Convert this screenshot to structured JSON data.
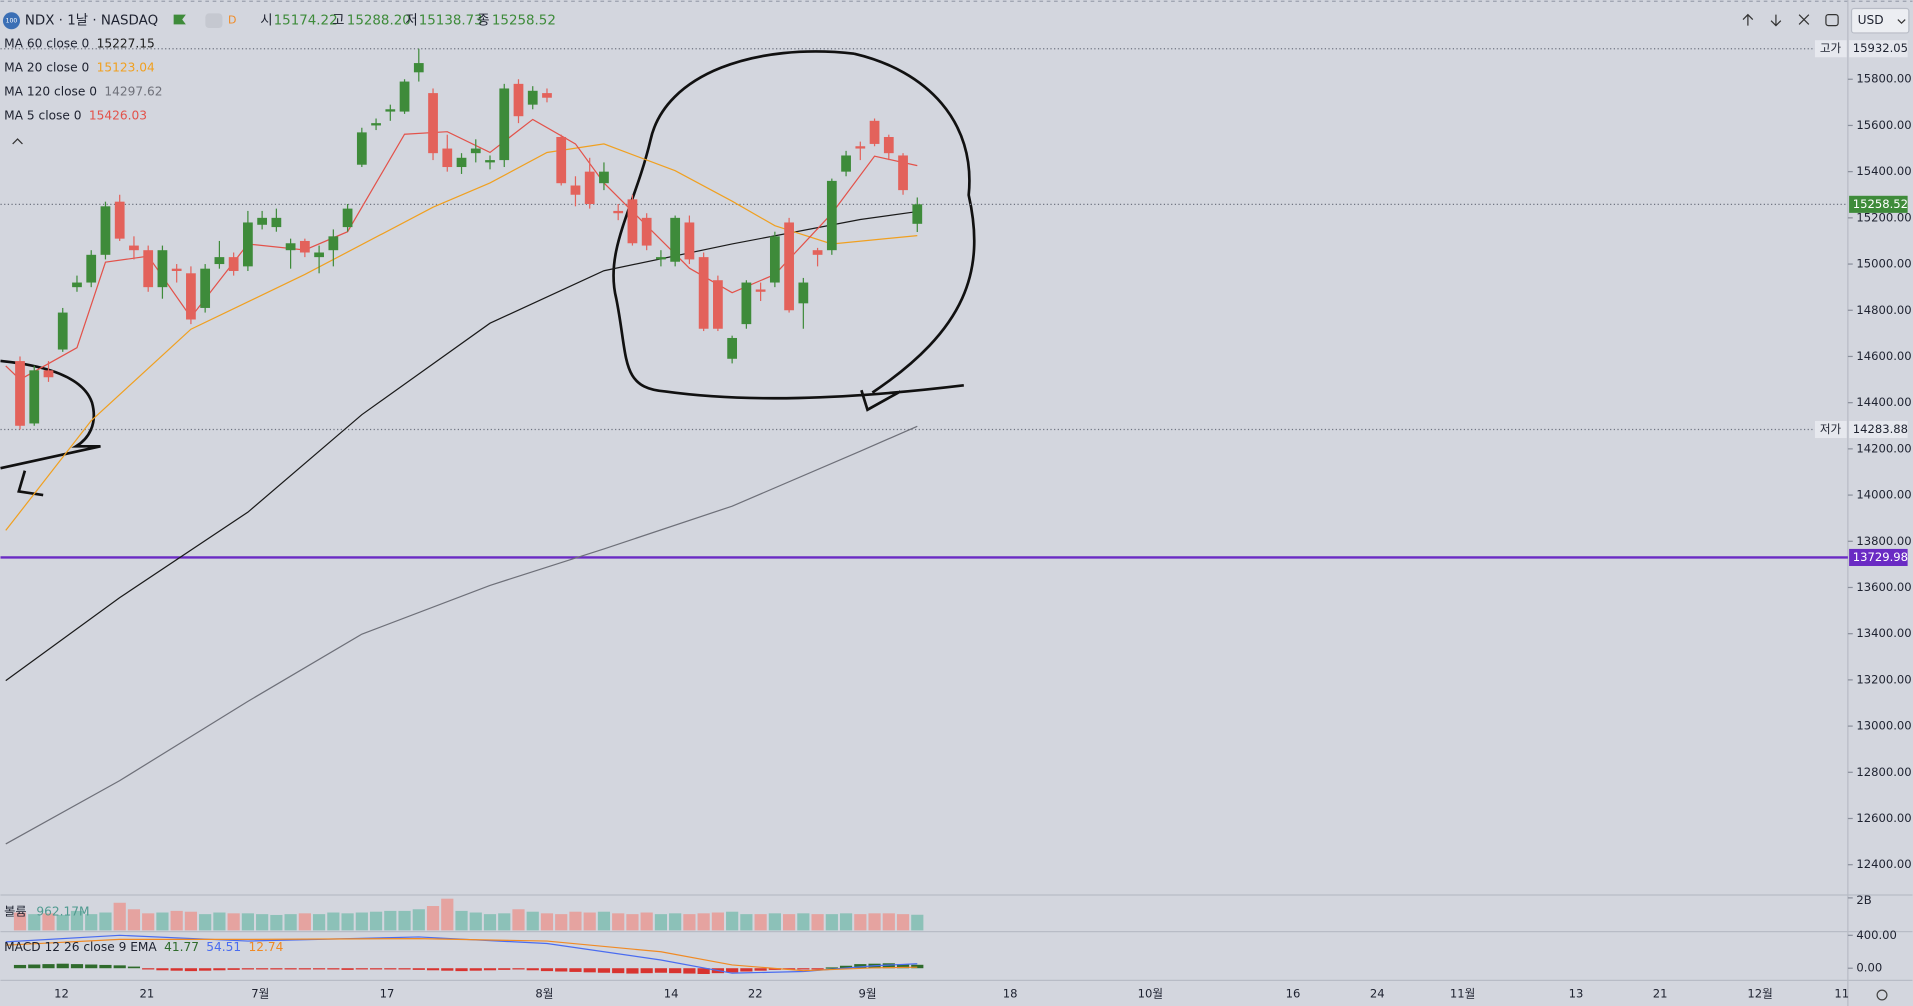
{
  "header": {
    "icon": "100",
    "symbol": "NDX · 1날 · NASDAQ",
    "interval_badge": "D",
    "open_label": "시",
    "open": "15174.22",
    "high_label": "고",
    "high": "15288.20",
    "low_label": "저",
    "low": "15138.73",
    "close_label": "종",
    "close": "15258.52",
    "currency": "USD"
  },
  "chart_data": {
    "type": "candlestick",
    "up_color": "#3e8b3a",
    "down_color": "#e3625b",
    "ohlc": [
      [
        14580,
        14600,
        14283.88,
        14300
      ],
      [
        14310,
        14560,
        14300,
        14540
      ],
      [
        14540,
        14580,
        14490,
        14510
      ],
      [
        14630,
        14810,
        14620,
        14790
      ],
      [
        14900,
        14950,
        14880,
        14920
      ],
      [
        14920,
        15060,
        14900,
        15040
      ],
      [
        15040,
        15270,
        15020,
        15250
      ],
      [
        15270,
        15300,
        15100,
        15110
      ],
      [
        15080,
        15120,
        15020,
        15060
      ],
      [
        15060,
        15080,
        14880,
        14900
      ],
      [
        14900,
        15080,
        14850,
        15060
      ],
      [
        14980,
        15000,
        14920,
        14970
      ],
      [
        14960,
        14990,
        14740,
        14760
      ],
      [
        14810,
        15000,
        14790,
        14980
      ],
      [
        15000,
        15100,
        14980,
        15030
      ],
      [
        15030,
        15050,
        14950,
        14970
      ],
      [
        14990,
        15230,
        14970,
        15180
      ],
      [
        15170,
        15230,
        15150,
        15200
      ],
      [
        15160,
        15240,
        15140,
        15200
      ],
      [
        15060,
        15110,
        14980,
        15090
      ],
      [
        15100,
        15110,
        15030,
        15050
      ],
      [
        15030,
        15080,
        14960,
        15050
      ],
      [
        15060,
        15150,
        14990,
        15120
      ],
      [
        15160,
        15260,
        15140,
        15240
      ],
      [
        15430,
        15590,
        15420,
        15570
      ],
      [
        15600,
        15630,
        15580,
        15610
      ],
      [
        15660,
        15690,
        15620,
        15670
      ],
      [
        15660,
        15800,
        15650,
        15790
      ],
      [
        15830,
        15932.05,
        15790,
        15870
      ],
      [
        15740,
        15760,
        15450,
        15480
      ],
      [
        15500,
        15560,
        15400,
        15420
      ],
      [
        15420,
        15480,
        15390,
        15460
      ],
      [
        15480,
        15540,
        15440,
        15500
      ],
      [
        15440,
        15470,
        15410,
        15450
      ],
      [
        15450,
        15780,
        15420,
        15760
      ],
      [
        15780,
        15800,
        15610,
        15640
      ],
      [
        15690,
        15770,
        15670,
        15750
      ],
      [
        15740,
        15760,
        15700,
        15720
      ],
      [
        15550,
        15560,
        15340,
        15350
      ],
      [
        15340,
        15380,
        15250,
        15300
      ],
      [
        15400,
        15460,
        15240,
        15260
      ],
      [
        15350,
        15440,
        15320,
        15400
      ],
      [
        15230,
        15260,
        15190,
        15220
      ],
      [
        15280,
        15300,
        15080,
        15090
      ],
      [
        15200,
        15220,
        15060,
        15080
      ],
      [
        15020,
        15060,
        14990,
        15030
      ],
      [
        15010,
        15210,
        14990,
        15200
      ],
      [
        15180,
        15210,
        15000,
        15020
      ],
      [
        15030,
        15050,
        14710,
        14720
      ],
      [
        14930,
        14950,
        14710,
        14720
      ],
      [
        14590,
        14690,
        14570,
        14680
      ],
      [
        14740,
        14930,
        14720,
        14920
      ],
      [
        14890,
        14920,
        14840,
        14880
      ],
      [
        14920,
        15140,
        14900,
        15120
      ],
      [
        15180,
        15200,
        14790,
        14800
      ],
      [
        14830,
        14940,
        14720,
        14920
      ],
      [
        15060,
        15070,
        14990,
        15040
      ],
      [
        15060,
        15370,
        15040,
        15360
      ],
      [
        15400,
        15490,
        15380,
        15470
      ],
      [
        15510,
        15530,
        15450,
        15500
      ],
      [
        15620,
        15630,
        15510,
        15520
      ],
      [
        15550,
        15560,
        15450,
        15480
      ],
      [
        15470,
        15480,
        15300,
        15320
      ],
      [
        15174.22,
        15288.2,
        15138.73,
        15258.52
      ]
    ],
    "ylim": [
      12274,
      16143
    ],
    "yticks": [
      {
        "value": 12400,
        "label": "12400.00"
      },
      {
        "value": 12600,
        "label": "12600.00"
      },
      {
        "value": 12800,
        "label": "12800.00"
      },
      {
        "value": 13000,
        "label": "13000.00"
      },
      {
        "value": 13200,
        "label": "13200.00"
      },
      {
        "value": 13400,
        "label": "13400.00"
      },
      {
        "value": 13600,
        "label": "13600.00"
      },
      {
        "value": 13800,
        "label": "13800.00"
      },
      {
        "value": 14000,
        "label": "14000.00"
      },
      {
        "value": 14200,
        "label": "14200.00"
      },
      {
        "value": 14400,
        "label": "14400.00"
      },
      {
        "value": 14600,
        "label": "14600.00"
      },
      {
        "value": 14800,
        "label": "14800.00"
      },
      {
        "value": 15000,
        "label": "15000.00"
      },
      {
        "value": 15200,
        "label": "15200.00"
      },
      {
        "value": 15400,
        "label": "15400.00"
      },
      {
        "value": 15600,
        "label": "15600.00"
      },
      {
        "value": 15800,
        "label": "15800.00"
      }
    ],
    "x_labels": [
      "12",
      "21",
      "7월",
      "17",
      "8월",
      "14",
      "22",
      "9월",
      "18",
      "10월",
      "16",
      "24",
      "11월",
      "13",
      "21",
      "12월",
      "11"
    ],
    "high_tag": "고가",
    "low_tag": "저가",
    "hline": {
      "value": 13729.98,
      "color": "#6a2bc4"
    },
    "moving_averages": [
      {
        "name": "MA 60 close 0",
        "color": "#1a1a1a",
        "x": [
          -1,
          7,
          16,
          24,
          33,
          41,
          50,
          59,
          63
        ],
        "values": [
          13197,
          13556,
          13926,
          14348,
          14744,
          14971,
          15087,
          15193,
          15227.15
        ]
      },
      {
        "name": "MA 20 close 0",
        "color": "#f0a020",
        "x": [
          -1,
          5,
          12,
          20,
          29,
          33,
          37,
          41,
          46,
          50,
          53,
          57,
          63
        ],
        "values": [
          13847,
          14322,
          14718,
          14955,
          15246,
          15351,
          15483,
          15520,
          15404,
          15272,
          15166,
          15087,
          15123.04
        ]
      },
      {
        "name": "MA 120 close 0",
        "color": "#6e7079",
        "x": [
          -1,
          7,
          16,
          24,
          33,
          41,
          50,
          59,
          63
        ],
        "values": [
          12490,
          12764,
          13107,
          13398,
          13609,
          13767,
          13952,
          14190,
          14297.62
        ]
      },
      {
        "name": "MA 5 close 0",
        "color": "#e3524a",
        "x": [
          -1,
          0,
          4,
          6,
          9,
          12,
          16,
          20,
          23,
          27,
          30,
          33,
          36,
          39,
          41,
          44,
          47,
          50,
          53,
          57,
          60,
          63
        ],
        "values": [
          14559,
          14500,
          14638,
          15008,
          15034,
          14770,
          15087,
          15061,
          15140,
          15562,
          15573,
          15483,
          15626,
          15520,
          15351,
          15166,
          14982,
          14876,
          14955,
          15219,
          15467,
          15426.03
        ]
      }
    ],
    "volume": {
      "name": "볼륨",
      "value_label": "962.17M",
      "up_color": "#8cc1b8",
      "down_color": "#e5a3a0",
      "ylim": [
        0,
        2100
      ],
      "yticks": [
        {
          "value": 2000,
          "label": "2B"
        }
      ],
      "values": [
        1100,
        1000,
        1050,
        950,
        1200,
        1000,
        1100,
        1700,
        1300,
        1050,
        1100,
        1200,
        1150,
        1000,
        1100,
        1050,
        1050,
        1000,
        950,
        1000,
        1050,
        1000,
        1100,
        1050,
        1100,
        1150,
        1200,
        1200,
        1300,
        1500,
        1950,
        1200,
        1100,
        1000,
        1050,
        1300,
        1150,
        1050,
        1000,
        1150,
        1100,
        1150,
        1050,
        1000,
        1100,
        1000,
        1050,
        1000,
        1050,
        1100,
        1150,
        1000,
        1000,
        1050,
        1000,
        1050,
        1000,
        1000,
        1050,
        1000,
        1050,
        1050,
        1000,
        962.17
      ]
    },
    "macd": {
      "name": "MACD 12 26 close 9 EMA",
      "ylim": [
        -133,
        430
      ],
      "yticks": [
        {
          "value": 400,
          "label": "400.00"
        },
        {
          "value": 0,
          "label": "0.00"
        }
      ],
      "histogram": {
        "up_color": "#2f6b2c",
        "down_color": "#d8332f",
        "values": [
          40,
          45,
          50,
          55,
          50,
          45,
          40,
          35,
          20,
          -15,
          -25,
          -30,
          -35,
          -30,
          -25,
          -20,
          -15,
          -10,
          -10,
          -5,
          -5,
          -10,
          -15,
          -20,
          -10,
          -5,
          -10,
          -15,
          -20,
          -25,
          -30,
          -35,
          -30,
          -25,
          -20,
          -15,
          -25,
          -35,
          -40,
          -45,
          -50,
          -55,
          -60,
          -65,
          -60,
          -55,
          -60,
          -65,
          -70,
          -60,
          -50,
          -40,
          -30,
          -20,
          -10,
          -15,
          -5,
          10,
          30,
          50,
          55,
          60,
          50,
          41.77
        ]
      },
      "macd_line": {
        "color": "#4a6cf0",
        "x": [
          -1,
          7,
          16,
          28,
          37,
          45,
          50,
          55,
          60,
          63
        ],
        "values": [
          320,
          400,
          330,
          380,
          300,
          100,
          -60,
          -40,
          30,
          54.51
        ]
      },
      "signal_line": {
        "color": "#f08a24",
        "x": [
          -1,
          7,
          16,
          28,
          37,
          45,
          50,
          55,
          60,
          63
        ],
        "values": [
          280,
          350,
          350,
          360,
          330,
          200,
          40,
          -30,
          5,
          12.74
        ]
      }
    }
  }
}
